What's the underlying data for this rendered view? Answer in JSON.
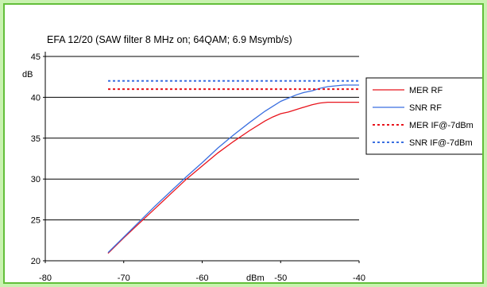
{
  "chart_data": {
    "type": "line",
    "title": "EFA 12/20 (SAW filter 8 MHz on; 64QAM; 6.9 Msymb/s)",
    "xlabel": "dBm",
    "ylabel": "dB",
    "xlim": [
      -80,
      -40
    ],
    "ylim": [
      20,
      45
    ],
    "x_ticks": [
      -80,
      -70,
      -60,
      -50,
      -40
    ],
    "x_tick_labels": [
      "-80",
      "-70",
      "-60",
      "-50",
      "-40"
    ],
    "y_ticks": [
      20,
      25,
      30,
      35,
      40,
      45
    ],
    "y_tick_labels": [
      "20",
      "25",
      "30",
      "35",
      "40",
      "45"
    ],
    "grid": "horizontal",
    "legend_position": "right",
    "series": [
      {
        "name": "MER RF",
        "style": "solid",
        "color": "#e8141c",
        "x": [
          -72,
          -70,
          -68,
          -66,
          -64,
          -62,
          -60,
          -58,
          -56,
          -54,
          -52,
          -51,
          -50,
          -49,
          -48,
          -47,
          -46,
          -45,
          -44,
          -43,
          -42,
          -41,
          -40
        ],
        "y": [
          20.9,
          22.8,
          24.6,
          26.4,
          28.2,
          30.0,
          31.6,
          33.2,
          34.6,
          35.9,
          37.1,
          37.6,
          38.0,
          38.2,
          38.5,
          38.8,
          39.1,
          39.3,
          39.4,
          39.4,
          39.4,
          39.4,
          39.4
        ]
      },
      {
        "name": "SNR RF",
        "style": "solid",
        "color": "#3a6fe0",
        "x": [
          -72,
          -70,
          -68,
          -66,
          -64,
          -62,
          -60,
          -58,
          -56,
          -54,
          -52,
          -51,
          -50,
          -49,
          -48,
          -47,
          -46,
          -45,
          -44,
          -43,
          -42,
          -41,
          -40
        ],
        "y": [
          21.0,
          22.9,
          24.8,
          26.7,
          28.5,
          30.3,
          32.0,
          33.8,
          35.4,
          36.9,
          38.3,
          38.9,
          39.5,
          39.9,
          40.3,
          40.6,
          40.8,
          41.1,
          41.3,
          41.4,
          41.5,
          41.5,
          41.5
        ]
      },
      {
        "name": "MER IF@-7dBm",
        "style": "dotted",
        "color": "#e8141c",
        "x": [
          -72,
          -40
        ],
        "y": [
          41.0,
          41.0
        ]
      },
      {
        "name": "SNR IF@-7dBm",
        "style": "dotted",
        "color": "#3a6fe0",
        "x": [
          -72,
          -40
        ],
        "y": [
          42.0,
          42.0
        ]
      }
    ]
  },
  "colors": {
    "page_background": "#c9f2b0",
    "frame_border": "#63bf3a",
    "plot_background": "#ffffff",
    "grid": "#000000"
  }
}
